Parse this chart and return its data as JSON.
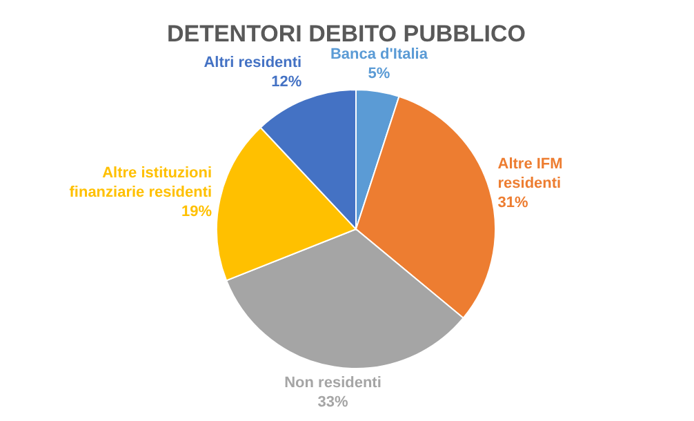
{
  "chart_data": {
    "type": "pie",
    "title": "DETENTORI DEBITO PUBBLICO",
    "categories": [
      "Banca d'Italia",
      "Altre IFM residenti",
      "Non residenti",
      "Altre istituzioni finanziarie residenti",
      "Altri residenti"
    ],
    "values": [
      5,
      31,
      33,
      19,
      12
    ],
    "colors": [
      "#5b9bd5",
      "#ed7d31",
      "#a5a5a5",
      "#ffc000",
      "#4472c4"
    ],
    "value_labels": [
      "5%",
      "31%",
      "33%",
      "19%",
      "12%"
    ]
  }
}
